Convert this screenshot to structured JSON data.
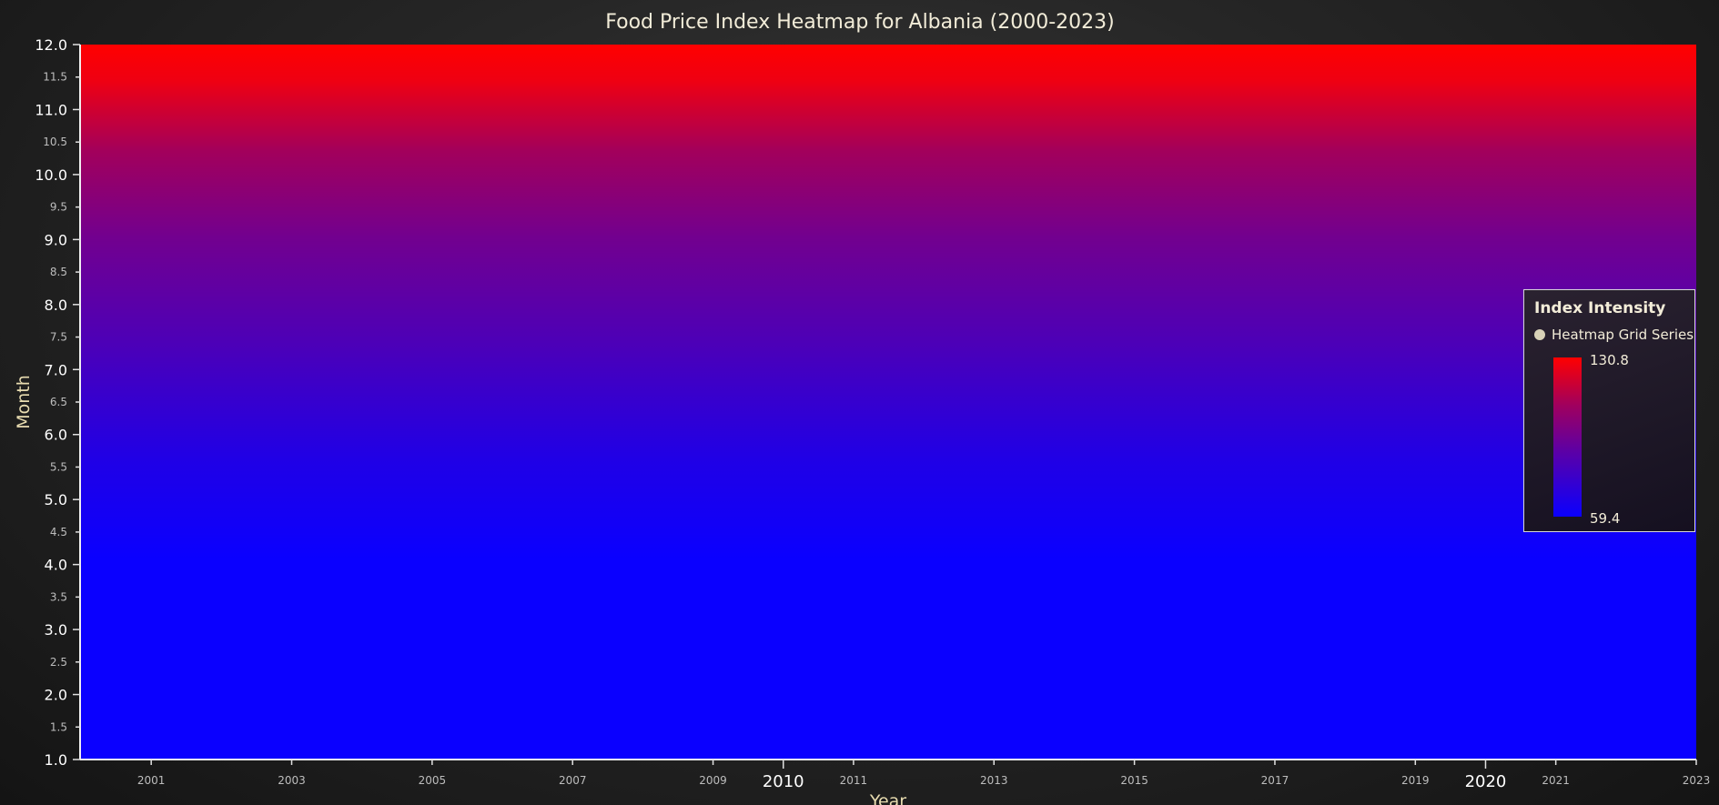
{
  "chart_data": {
    "type": "heatmap",
    "title": "Food Price Index Heatmap for Albania (2000-2023)",
    "xlabel": "Year",
    "ylabel": "Month",
    "xlim": [
      2000,
      2023
    ],
    "ylim": [
      1.0,
      12.0
    ],
    "x_major_ticks": [
      "2010",
      "2020"
    ],
    "x_minor_ticks": [
      "2001",
      "2003",
      "2005",
      "2007",
      "2009",
      "2011",
      "2013",
      "2015",
      "2017",
      "2019",
      "2021",
      "2023"
    ],
    "y_major_ticks": [
      "1.0",
      "2.0",
      "3.0",
      "4.0",
      "5.0",
      "6.0",
      "7.0",
      "8.0",
      "9.0",
      "10.0",
      "11.0",
      "12.0"
    ],
    "y_minor_ticks": [
      "1.5",
      "2.5",
      "3.5",
      "4.5",
      "5.5",
      "6.5",
      "7.5",
      "8.5",
      "9.5",
      "10.5",
      "11.5"
    ],
    "color_min": "#0a00ff",
    "color_max": "#ff0000",
    "value_min": 59.4,
    "value_max": 130.8,
    "legend": {
      "title": "Index Intensity",
      "entry": "Heatmap Grid Series",
      "max_label": "130.8",
      "min_label": "59.4",
      "placement": "right"
    }
  }
}
